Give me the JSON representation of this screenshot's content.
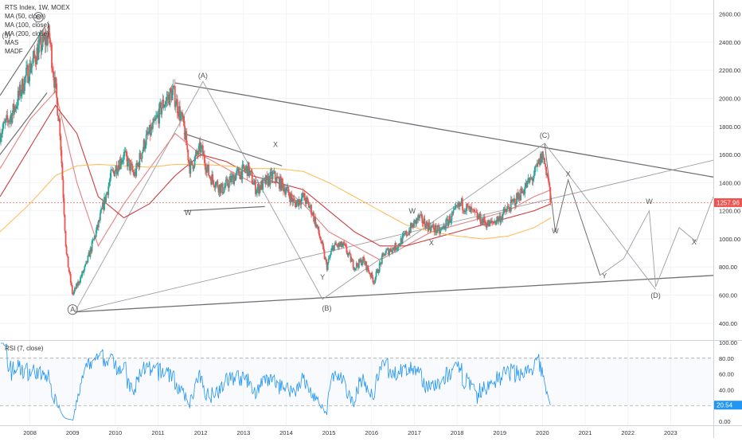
{
  "header": {
    "title": "RTS Index, 1W, MOEX",
    "indicators": [
      "MA (50, close)",
      "MA (100, close)",
      "MA (200, close)",
      "MAS",
      "MADF"
    ]
  },
  "rsi_label": "RSI (7, close)",
  "colors": {
    "up": "#26a69a",
    "down": "#ef5350",
    "ma50": "#e57373",
    "ma100": "#c62828",
    "ma200": "#ffb74d",
    "rsi": "#2196f3",
    "price_line": "#ef5350",
    "trendline": "#707070",
    "wave": "#9e9e9e"
  },
  "chart_data": [
    {
      "type": "candlestick",
      "title": "RTS Index, 1W, MOEX",
      "x_ticks": [
        "2008",
        "2009",
        "2010",
        "2011",
        "2012",
        "2013",
        "2014",
        "2015",
        "2016",
        "2017",
        "2018",
        "2019",
        "2020",
        "2021",
        "2022",
        "2023"
      ],
      "y_ticks": [
        400,
        600,
        800,
        1000,
        1200,
        1400,
        1600,
        1800,
        2000,
        2200,
        2400,
        2600
      ],
      "y_tick_labels": [
        "400.00",
        "600.00",
        "800.00",
        "1000.00",
        "1200.00",
        "1400.00",
        "1600.00",
        "1800.00",
        "2000.00",
        "2200.00",
        "2400.00",
        "2600.00"
      ],
      "xlim": [
        2007.3,
        2024.0
      ],
      "ylim": [
        280,
        2700
      ],
      "last_price_label": "1257.96",
      "series": [
        {
          "name": "Price",
          "x": [
            2007.3,
            2007.6,
            2007.9,
            2008.2,
            2008.45,
            2008.7,
            2008.85,
            2009.0,
            2009.3,
            2009.6,
            2009.9,
            2010.2,
            2010.45,
            2010.7,
            2010.9,
            2011.1,
            2011.35,
            2011.6,
            2011.75,
            2012.0,
            2012.2,
            2012.5,
            2012.8,
            2013.1,
            2013.3,
            2013.5,
            2013.7,
            2014.0,
            2014.2,
            2014.4,
            2014.6,
            2014.8,
            2014.95,
            2015.1,
            2015.35,
            2015.6,
            2015.8,
            2016.05,
            2016.3,
            2016.6,
            2016.85,
            2017.1,
            2017.3,
            2017.6,
            2017.85,
            2018.1,
            2018.3,
            2018.5,
            2018.75,
            2019.0,
            2019.3,
            2019.55,
            2019.8,
            2020.0,
            2020.12,
            2020.2
          ],
          "y": [
            1750,
            1900,
            2150,
            2350,
            2450,
            1800,
            900,
            600,
            800,
            1100,
            1450,
            1600,
            1450,
            1700,
            1800,
            1950,
            2050,
            1800,
            1500,
            1650,
            1450,
            1350,
            1450,
            1500,
            1350,
            1400,
            1450,
            1350,
            1250,
            1300,
            1200,
            1000,
            800,
            950,
            950,
            800,
            850,
            700,
            900,
            950,
            1050,
            1150,
            1100,
            1050,
            1150,
            1250,
            1200,
            1150,
            1100,
            1150,
            1250,
            1350,
            1450,
            1600,
            1450,
            1258
          ]
        },
        {
          "name": "MA (50, close)",
          "x": [
            2007.3,
            2008.0,
            2008.6,
            2009.1,
            2009.6,
            2010.2,
            2010.8,
            2011.4,
            2012.0,
            2012.6,
            2013.2,
            2013.8,
            2014.4,
            2015.0,
            2015.6,
            2016.2,
            2016.8,
            2017.4,
            2018.0,
            2018.6,
            2019.2,
            2019.8,
            2020.2
          ],
          "y": [
            1500,
            1850,
            2050,
            1400,
            950,
            1250,
            1500,
            1750,
            1600,
            1500,
            1400,
            1400,
            1250,
            1050,
            950,
            850,
            950,
            1050,
            1100,
            1150,
            1200,
            1300,
            1350
          ]
        },
        {
          "name": "MA (100, close)",
          "x": [
            2007.3,
            2008.0,
            2008.6,
            2009.1,
            2009.6,
            2010.2,
            2010.8,
            2011.4,
            2012.0,
            2012.6,
            2013.2,
            2013.8,
            2014.4,
            2015.0,
            2015.6,
            2016.2,
            2016.8,
            2017.4,
            2018.0,
            2018.6,
            2019.2,
            2019.8,
            2020.2
          ],
          "y": [
            1300,
            1650,
            1950,
            1750,
            1300,
            1150,
            1250,
            1450,
            1600,
            1550,
            1450,
            1400,
            1350,
            1200,
            1050,
            950,
            950,
            1000,
            1050,
            1100,
            1150,
            1200,
            1250
          ]
        },
        {
          "name": "MA (200, close)",
          "x": [
            2007.3,
            2008.0,
            2008.6,
            2009.1,
            2009.6,
            2010.2,
            2010.8,
            2011.4,
            2012.0,
            2012.6,
            2013.2,
            2013.8,
            2014.4,
            2015.0,
            2015.6,
            2016.2,
            2016.8,
            2017.4,
            2018.0,
            2018.6,
            2019.2,
            2019.8,
            2020.2
          ],
          "y": [
            1050,
            1250,
            1450,
            1520,
            1530,
            1520,
            1510,
            1530,
            1530,
            1520,
            1500,
            1500,
            1480,
            1400,
            1300,
            1200,
            1100,
            1050,
            1020,
            1000,
            1020,
            1080,
            1150
          ]
        }
      ],
      "annotations": {
        "labels": [
          {
            "text": "A",
            "x": 2009.0,
            "y": 480
          },
          {
            "text": "(A)",
            "x": 2012.05,
            "y": 2145
          },
          {
            "text": "(B)",
            "x": 2014.95,
            "y": 490
          },
          {
            "text": "(C)",
            "x": 2020.05,
            "y": 1720
          },
          {
            "text": "(D)",
            "x": 2022.65,
            "y": 580
          },
          {
            "text": "W",
            "x": 2011.7,
            "y": 1170
          },
          {
            "text": "X",
            "x": 2013.75,
            "y": 1655
          },
          {
            "text": "Y",
            "x": 2014.85,
            "y": 710
          },
          {
            "text": "W",
            "x": 2016.95,
            "y": 1180
          },
          {
            "text": "X",
            "x": 2017.4,
            "y": 955
          },
          {
            "text": "X",
            "x": 2020.6,
            "y": 1445
          },
          {
            "text": "W",
            "x": 2020.3,
            "y": 1040
          },
          {
            "text": "Y",
            "x": 2021.45,
            "y": 720
          },
          {
            "text": "W",
            "x": 2022.5,
            "y": 1250
          },
          {
            "text": "X",
            "x": 2023.55,
            "y": 960
          },
          {
            "text": "(5)",
            "x": 2007.45,
            "y": 2430
          },
          {
            "text": "C",
            "x": 2008.2,
            "y": 2560
          }
        ]
      }
    },
    {
      "type": "line",
      "title": "RSI (7, close)",
      "y_ticks": [
        0,
        20,
        40,
        60,
        80,
        100
      ],
      "y_tick_labels": [
        "0.00",
        "20.00",
        "40.00",
        "60.00",
        "80.00",
        "100.00"
      ],
      "ylim": [
        -5,
        102
      ],
      "reference_lines": [
        20,
        80
      ],
      "last_value_label": "20.54"
    }
  ]
}
